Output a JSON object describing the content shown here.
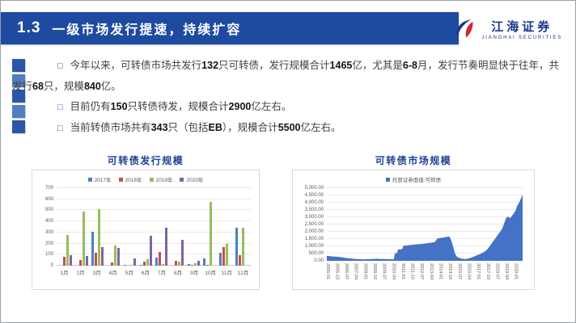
{
  "slide": {
    "title_number": "1.3",
    "title": "一级市场发行提速，持续扩容"
  },
  "logo": {
    "name": "江海证券",
    "subtitle": "JIANGHAI SECURITIES"
  },
  "colors": {
    "banner_blue": "#1e4ba0",
    "logo_blue": "#16388e",
    "logo_red": "#d8232a",
    "chart_title_blue": "#1c3f94"
  },
  "decor": {
    "square_colors": [
      "#2a57a7",
      "#527dc0",
      "#2a57a7",
      "#527dc0",
      "#2a57a7"
    ]
  },
  "bullets": [
    {
      "segments": [
        {
          "text": "今年以来，可转债市场共发行",
          "bold": false
        },
        {
          "text": "132",
          "bold": true
        },
        {
          "text": "只可转债，发行规模合计",
          "bold": false
        },
        {
          "text": "1465",
          "bold": true
        },
        {
          "text": "亿，尤其是",
          "bold": false
        },
        {
          "text": "6-8",
          "bold": true
        },
        {
          "text": "月，发行节奏明显快于往年，共发行",
          "bold": false
        },
        {
          "text": "68",
          "bold": true
        },
        {
          "text": "只，规模",
          "bold": false
        },
        {
          "text": "840",
          "bold": true
        },
        {
          "text": "亿。",
          "bold": false
        }
      ]
    },
    {
      "segments": [
        {
          "text": "目前仍有",
          "bold": false
        },
        {
          "text": "150",
          "bold": true
        },
        {
          "text": "只转债待发，规模合计",
          "bold": false
        },
        {
          "text": "2900",
          "bold": true
        },
        {
          "text": "亿左右。",
          "bold": false
        }
      ]
    },
    {
      "segments": [
        {
          "text": "当前转债市场共有",
          "bold": false
        },
        {
          "text": "343",
          "bold": true
        },
        {
          "text": "只（包括",
          "bold": false
        },
        {
          "text": "EB",
          "bold": true
        },
        {
          "text": "），规模合计",
          "bold": false
        },
        {
          "text": "5500",
          "bold": true
        },
        {
          "text": "亿左右。",
          "bold": false
        }
      ]
    }
  ],
  "chart_data": [
    {
      "type": "bar",
      "title": "可转债发行规模",
      "categories": [
        "1月",
        "2月",
        "3月",
        "4月",
        "5月",
        "6月",
        "7月",
        "8月",
        "9月",
        "10月",
        "11月",
        "12月"
      ],
      "series": [
        {
          "name": "2017年",
          "color": "#4F81BD",
          "values": [
            0,
            0,
            305,
            0,
            8,
            10,
            70,
            0,
            15,
            65,
            120,
            345
          ]
        },
        {
          "name": "2018年",
          "color": "#C0504D",
          "values": [
            80,
            50,
            115,
            30,
            0,
            35,
            125,
            45,
            10,
            5,
            170,
            95
          ]
        },
        {
          "name": "2019年",
          "color": "#9BBB59",
          "values": [
            275,
            490,
            510,
            185,
            10,
            55,
            15,
            40,
            20,
            575,
            200,
            340
          ]
        },
        {
          "name": "2020年",
          "color": "#8064A2",
          "values": [
            95,
            90,
            170,
            160,
            65,
            270,
            340,
            230,
            45,
            0,
            0,
            0
          ]
        }
      ],
      "xlabel": "",
      "ylabel": "",
      "ylim": [
        0,
        700
      ],
      "ytick_step": 100,
      "y_tick_labels": [
        "0",
        "100",
        "200",
        "300",
        "400",
        "500",
        "600",
        "700"
      ],
      "legend_position": "top",
      "grid": true
    },
    {
      "type": "area",
      "title": "可转债市场规模",
      "legend": [
        "托管证券面值:可转债"
      ],
      "color": "#4472C4",
      "x_start": "2005-01",
      "x_step_months": 1,
      "label_every": 9,
      "x_tick_labels": [
        "2005-01",
        "2005-10",
        "2006-07",
        "2007-04",
        "2008-01",
        "2008-10",
        "2009-07",
        "2010-04",
        "2011-01",
        "2011-10",
        "2012-07",
        "2013-04",
        "2014-01",
        "2014-10",
        "2015-07",
        "2016-04",
        "2017-01",
        "2017-10",
        "2018-07",
        "2019-04",
        "2020-01"
      ],
      "values": [
        340,
        332,
        325,
        318,
        312,
        306,
        300,
        295,
        290,
        286,
        282,
        278,
        270,
        258,
        246,
        234,
        222,
        210,
        200,
        192,
        184,
        176,
        168,
        160,
        152,
        146,
        140,
        134,
        128,
        122,
        118,
        114,
        110,
        108,
        106,
        105,
        105,
        107,
        110,
        113,
        116,
        119,
        122,
        125,
        128,
        131,
        134,
        137,
        139,
        137,
        135,
        132,
        130,
        128,
        126,
        123,
        121,
        119,
        117,
        115,
        113,
        112,
        112,
        113,
        114,
        515,
        520,
        524,
        780,
        786,
        790,
        794,
        798,
        1030,
        1040,
        1048,
        1056,
        1064,
        1072,
        1080,
        1088,
        1096,
        1104,
        1112,
        1118,
        1124,
        1130,
        1136,
        1144,
        1152,
        1160,
        1168,
        1176,
        1184,
        1192,
        1200,
        1210,
        1220,
        1230,
        1240,
        1252,
        1264,
        1276,
        1288,
        1380,
        1480,
        1540,
        1556,
        1566,
        1576,
        1586,
        1596,
        1612,
        1628,
        1640,
        1652,
        1664,
        1676,
        1540,
        1380,
        1150,
        880,
        600,
        420,
        310,
        250,
        210,
        185,
        165,
        152,
        142,
        132,
        126,
        130,
        140,
        158,
        178,
        198,
        220,
        248,
        278,
        308,
        340,
        372,
        402,
        424,
        452,
        482,
        520,
        560,
        602,
        650,
        700,
        762,
        852,
        950,
        1050,
        1150,
        1252,
        1352,
        1452,
        1552,
        1652,
        1752,
        1852,
        1950,
        2052,
        2152,
        2300,
        2500,
        2700,
        2900,
        3000,
        3040,
        2990,
        2950,
        3010,
        3110,
        3210,
        3310,
        3420,
        3620,
        3820,
        3920,
        4050,
        4220,
        4380,
        4570
      ],
      "ylim": [
        0,
        5000
      ],
      "ytick_step": 500,
      "y_tick_labels": [
        "0.00",
        "500.00",
        "1,000.00",
        "1,500.00",
        "2,000.00",
        "2,500.00",
        "3,000.00",
        "3,500.00",
        "4,000.00",
        "4,500.00",
        "5,000.00"
      ],
      "legend_position": "top",
      "grid": true
    }
  ]
}
